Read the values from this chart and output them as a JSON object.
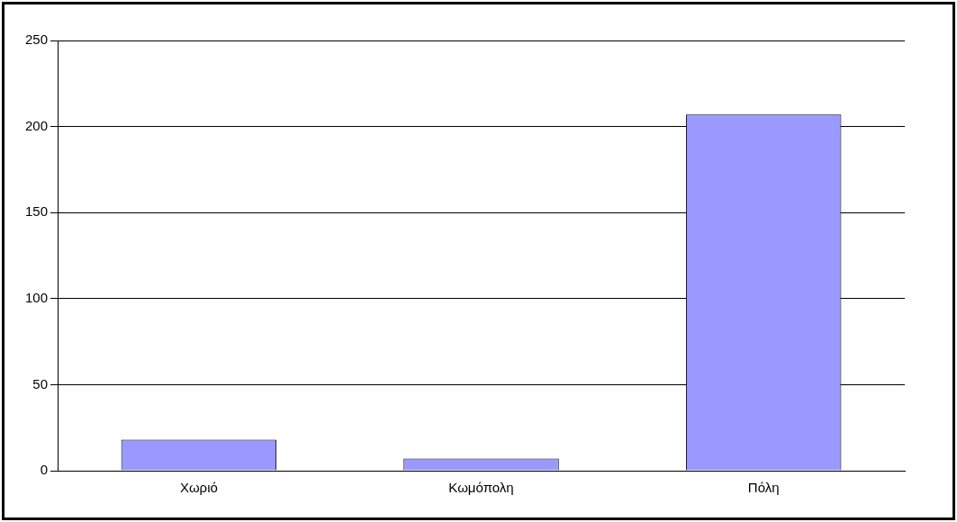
{
  "chart_data": {
    "type": "bar",
    "categories": [
      "Χωριό",
      "Κωμόπολη",
      "Πόλη"
    ],
    "values": [
      18,
      7,
      207
    ],
    "color": "#9999ff",
    "ylim": [
      0,
      250
    ],
    "yticks": [
      0,
      50,
      100,
      150,
      200,
      250
    ],
    "grid": "y",
    "legend": false
  }
}
